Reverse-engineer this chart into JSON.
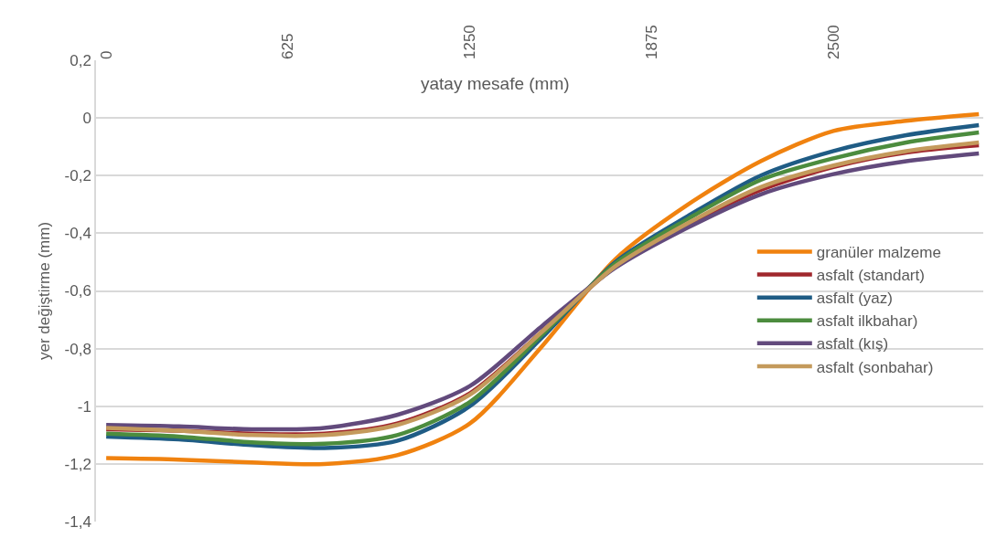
{
  "chart_data": {
    "type": "line",
    "xlabel": "yatay mesafe (mm)",
    "ylabel": "yer değiştirme (mm)",
    "x": [
      0,
      250,
      500,
      750,
      1000,
      1250,
      1500,
      1750,
      2000,
      2250,
      2500,
      2750,
      3000
    ],
    "xlim": [
      -35,
      3015
    ],
    "xticks": [
      0,
      625,
      1250,
      1875,
      2500
    ],
    "ylim": [
      -1.4,
      0.2
    ],
    "yticks": [
      {
        "value": 0.2,
        "label": "0,2"
      },
      {
        "value": 0,
        "label": "0"
      },
      {
        "value": -0.2,
        "label": "-0,2"
      },
      {
        "value": -0.4,
        "label": "-0,4"
      },
      {
        "value": -0.6,
        "label": "-0,6"
      },
      {
        "value": -0.8,
        "label": "-0,8"
      },
      {
        "value": -1,
        "label": "-1"
      },
      {
        "value": -1.2,
        "label": "-1,2"
      },
      {
        "value": -1.4,
        "label": "-1,4"
      }
    ],
    "grid": "y",
    "legend": "right",
    "marker": "none",
    "line_style": "solid",
    "series": [
      {
        "name": "granüler malzeme",
        "color": "#f0820f",
        "values": [
          -1.18,
          -1.185,
          -1.195,
          -1.2,
          -1.17,
          -1.06,
          -0.79,
          -0.49,
          -0.3,
          -0.15,
          -0.045,
          -0.01,
          0.013
        ]
      },
      {
        "name": "asfalt (standart)",
        "color": "#a0272d",
        "values": [
          -1.08,
          -1.085,
          -1.095,
          -1.095,
          -1.06,
          -0.955,
          -0.74,
          -0.515,
          -0.37,
          -0.25,
          -0.17,
          -0.12,
          -0.095
        ]
      },
      {
        "name": "asfalt (yaz)",
        "color": "#1f5c85",
        "values": [
          -1.105,
          -1.115,
          -1.135,
          -1.145,
          -1.12,
          -1.0,
          -0.76,
          -0.5,
          -0.34,
          -0.2,
          -0.115,
          -0.06,
          -0.025
        ]
      },
      {
        "name": "asfalt ilkbahar)",
        "color": "#4c8c3e",
        "values": [
          -1.095,
          -1.105,
          -1.125,
          -1.13,
          -1.1,
          -0.985,
          -0.75,
          -0.505,
          -0.35,
          -0.215,
          -0.14,
          -0.085,
          -0.05
        ]
      },
      {
        "name": "asfalt (kış)",
        "color": "#624a7c",
        "values": [
          -1.065,
          -1.07,
          -1.08,
          -1.075,
          -1.03,
          -0.93,
          -0.72,
          -0.52,
          -0.38,
          -0.265,
          -0.195,
          -0.15,
          -0.123
        ]
      },
      {
        "name": "asfalt (sonbahar)",
        "color": "#c49a5c",
        "values": [
          -1.075,
          -1.085,
          -1.1,
          -1.1,
          -1.065,
          -0.96,
          -0.74,
          -0.515,
          -0.365,
          -0.24,
          -0.165,
          -0.115,
          -0.085
        ]
      }
    ]
  }
}
